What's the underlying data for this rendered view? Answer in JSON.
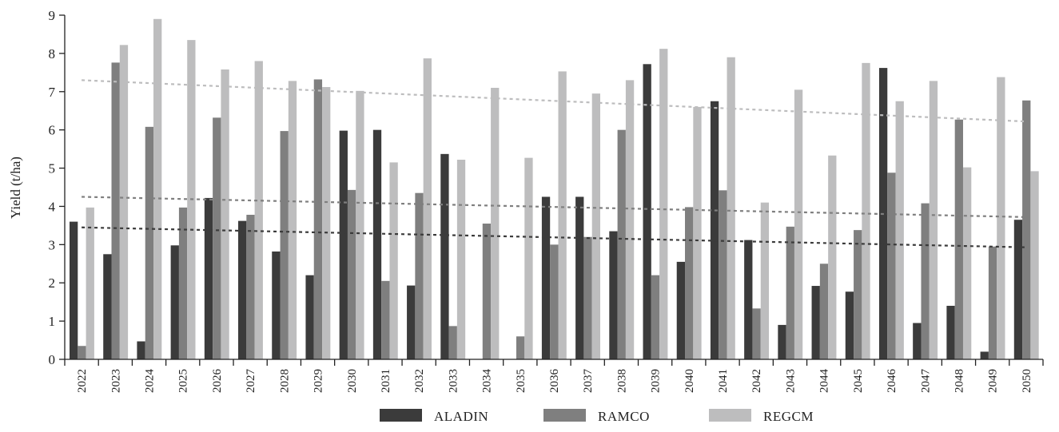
{
  "chart_data": {
    "type": "bar",
    "title": "",
    "xlabel": "",
    "ylabel": "Yield (t/ha)",
    "ylim": [
      0,
      9
    ],
    "yticks": [
      0,
      1,
      2,
      3,
      4,
      5,
      6,
      7,
      8,
      9
    ],
    "grid": false,
    "legend_position": "bottom",
    "categories": [
      "2022",
      "2023",
      "2024",
      "2025",
      "2026",
      "2027",
      "2028",
      "2029",
      "2030",
      "2031",
      "2032",
      "2033",
      "2034",
      "2035",
      "2036",
      "2037",
      "2038",
      "2039",
      "2040",
      "2041",
      "2042",
      "2043",
      "2044",
      "2045",
      "2046",
      "2047",
      "2048",
      "2049",
      "2050"
    ],
    "series": [
      {
        "name": "ALADIN",
        "color": "#3b3b3b",
        "values": [
          3.6,
          2.75,
          0.47,
          2.98,
          4.22,
          3.62,
          2.82,
          2.2,
          5.98,
          6.0,
          1.93,
          5.37,
          0,
          0,
          4.25,
          4.25,
          3.35,
          7.72,
          2.55,
          6.75,
          3.12,
          0.9,
          1.92,
          1.77,
          7.62,
          0.95,
          1.4,
          0.2,
          3.65
        ]
      },
      {
        "name": "RAMCO",
        "color": "#7f7f7f",
        "values": [
          0.35,
          7.76,
          6.08,
          3.97,
          6.32,
          3.78,
          5.97,
          7.32,
          4.43,
          2.05,
          4.35,
          0.87,
          3.55,
          0.6,
          3.0,
          3.2,
          6.0,
          2.2,
          3.98,
          4.42,
          1.33,
          3.47,
          2.5,
          3.38,
          4.88,
          4.08,
          6.27,
          2.95,
          6.77
        ]
      },
      {
        "name": "REGCM",
        "color": "#bdbdbe",
        "values": [
          3.97,
          8.22,
          8.9,
          8.35,
          7.58,
          7.8,
          7.28,
          7.12,
          7.02,
          5.15,
          7.87,
          5.22,
          7.1,
          5.27,
          7.53,
          6.95,
          7.3,
          8.12,
          6.6,
          7.9,
          4.1,
          7.05,
          5.33,
          7.75,
          6.75,
          7.28,
          5.02,
          7.38,
          4.92
        ]
      }
    ],
    "trendlines": [
      {
        "series": "ALADIN",
        "color": "#3b3b3b",
        "start": 3.45,
        "end": 2.93
      },
      {
        "series": "RAMCO",
        "color": "#7f7f7f",
        "start": 4.25,
        "end": 3.72
      },
      {
        "series": "REGCM",
        "color": "#bdbdbe",
        "start": 7.3,
        "end": 6.22
      }
    ]
  }
}
